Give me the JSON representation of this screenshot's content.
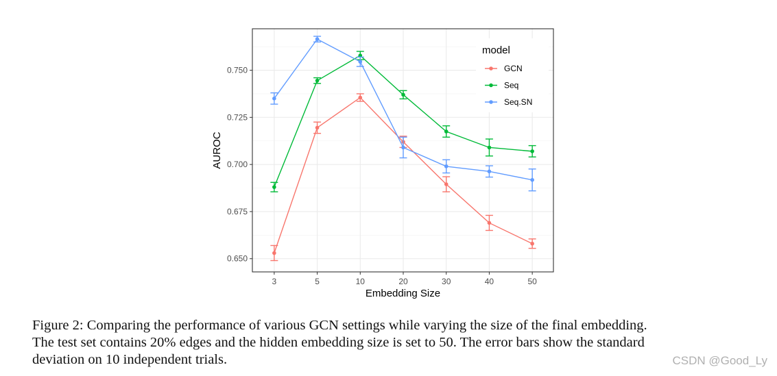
{
  "chart_data": {
    "type": "line",
    "xlabel": "Embedding Size",
    "ylabel": "AUROC",
    "categories": [
      "3",
      "5",
      "10",
      "20",
      "30",
      "40",
      "50"
    ],
    "ylim": [
      0.643,
      0.772
    ],
    "yticks": [
      "0.650",
      "0.675",
      "0.700",
      "0.725",
      "0.750"
    ],
    "ytick_values": [
      0.65,
      0.675,
      0.7,
      0.725,
      0.75
    ],
    "grid": true,
    "legend": {
      "title": "model",
      "position": "top-right"
    },
    "series": [
      {
        "name": "GCN",
        "color": "#F8766D",
        "values": [
          0.653,
          0.7195,
          0.7355,
          0.712,
          0.6895,
          0.669,
          0.658
        ],
        "errors": [
          0.004,
          0.003,
          0.002,
          0.003,
          0.004,
          0.004,
          0.0025
        ]
      },
      {
        "name": "Seq",
        "color": "#00BA38",
        "values": [
          0.688,
          0.7445,
          0.7578,
          0.737,
          0.7175,
          0.709,
          0.707
        ],
        "errors": [
          0.0025,
          0.0015,
          0.0022,
          0.0022,
          0.003,
          0.0045,
          0.003
        ]
      },
      {
        "name": "Seq.SN",
        "color": "#619CFF",
        "values": [
          0.735,
          0.7665,
          0.7545,
          0.709,
          0.699,
          0.6963,
          0.6918
        ],
        "errors": [
          0.003,
          0.0015,
          0.0025,
          0.0055,
          0.0035,
          0.003,
          0.0058
        ]
      }
    ]
  },
  "caption": {
    "lines": [
      "Figure 2:  Comparing the performance of various GCN settings while varying the size of the final embedding.",
      "The test set contains 20% edges and the hidden embedding size is set to 50.  The error bars show the standard",
      "deviation on 10 independent trials."
    ]
  },
  "watermark": "CSDN @Good_Ly"
}
